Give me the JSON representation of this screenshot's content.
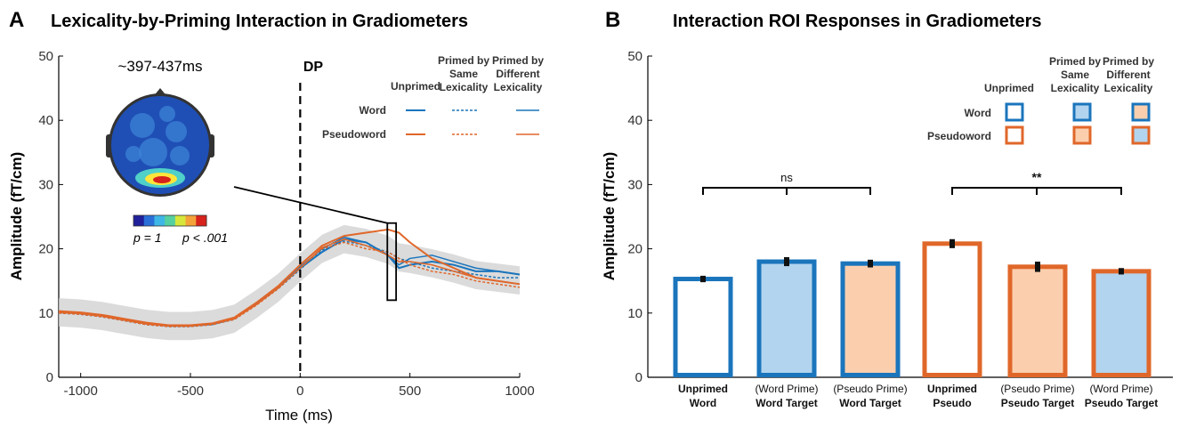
{
  "panels": {
    "a": {
      "letter": "A",
      "title": "Lexicality-by-Priming Interaction in Gradiometers"
    },
    "b": {
      "letter": "B",
      "title": "Interaction ROI Responses in Gradiometers"
    }
  },
  "colors": {
    "word": "#1a75bc",
    "pseudo": "#e0672a",
    "word_fill": "#b3d4ee",
    "pseudo_fill": "#fbcfae",
    "band": "#cfcfcf"
  },
  "chart_data": [
    {
      "type": "line",
      "xlabel": "Time (ms)",
      "ylabel": "Amplitude (fT/cm)",
      "xlim": [
        -1100,
        1000
      ],
      "ylim": [
        0,
        50
      ],
      "xticks": [
        -1000,
        -500,
        0,
        500,
        1000
      ],
      "yticks": [
        0,
        10,
        20,
        30,
        40,
        50
      ],
      "x": [
        -1100,
        -1000,
        -900,
        -800,
        -700,
        -600,
        -500,
        -400,
        -300,
        -200,
        -100,
        0,
        100,
        200,
        300,
        400,
        450,
        500,
        600,
        700,
        800,
        900,
        1000
      ],
      "series": [
        {
          "lexicality": "Word",
          "priming": "Unprimed",
          "values": [
            10.2,
            10.0,
            9.6,
            9.0,
            8.4,
            8.0,
            8.0,
            8.3,
            9.2,
            11.5,
            14.0,
            17.0,
            19.5,
            21.5,
            21.0,
            19.0,
            17.0,
            17.5,
            18.0,
            17.5,
            16.5,
            16.5,
            16.0
          ]
        },
        {
          "lexicality": "Word",
          "priming": "Primed by Same Lexicality",
          "values": [
            10.0,
            9.8,
            9.4,
            8.8,
            8.2,
            7.9,
            7.9,
            8.2,
            9.0,
            11.3,
            13.8,
            16.8,
            19.8,
            21.2,
            20.5,
            19.5,
            18.5,
            18.0,
            17.0,
            16.5,
            16.0,
            15.5,
            15.5
          ]
        },
        {
          "lexicality": "Word",
          "priming": "Primed by Different Lexicality",
          "values": [
            10.1,
            9.9,
            9.5,
            8.9,
            8.3,
            8.0,
            8.0,
            8.2,
            9.1,
            11.4,
            13.9,
            17.2,
            20.0,
            21.8,
            21.0,
            19.0,
            17.5,
            18.5,
            19.0,
            18.0,
            17.0,
            16.5,
            16.0
          ]
        },
        {
          "lexicality": "Pseudoword",
          "priming": "Unprimed",
          "values": [
            10.3,
            10.1,
            9.7,
            9.1,
            8.5,
            8.1,
            8.1,
            8.4,
            9.3,
            11.6,
            14.2,
            17.5,
            20.5,
            22.0,
            22.5,
            23.0,
            22.5,
            21.0,
            18.5,
            17.0,
            15.5,
            15.0,
            14.5
          ]
        },
        {
          "lexicality": "Pseudoword",
          "priming": "Primed by Same Lexicality",
          "values": [
            10.0,
            9.8,
            9.4,
            8.8,
            8.2,
            7.9,
            7.9,
            8.2,
            9.0,
            11.2,
            13.8,
            17.0,
            20.0,
            21.0,
            20.0,
            19.5,
            18.5,
            17.5,
            16.5,
            16.0,
            15.0,
            14.5,
            14.0
          ]
        },
        {
          "lexicality": "Pseudoword",
          "priming": "Primed by Different Lexicality",
          "values": [
            10.1,
            9.9,
            9.5,
            8.9,
            8.3,
            8.0,
            8.0,
            8.3,
            9.1,
            11.3,
            13.9,
            17.0,
            20.2,
            21.5,
            20.5,
            19.0,
            18.0,
            18.0,
            17.5,
            16.5,
            15.5,
            15.0,
            14.5
          ]
        }
      ],
      "annotations": {
        "dp_label": "DP",
        "dp_x": 0,
        "window_label": "~397-437ms",
        "window": [
          397,
          437
        ],
        "colorbar_left": "p = 1",
        "colorbar_right": "p < .001"
      },
      "legend": {
        "placement": "top-right",
        "columns": [
          "Unprimed",
          "Primed by Same Lexicality",
          "Primed by Different Lexicality"
        ],
        "rows": [
          "Word",
          "Pseudoword"
        ]
      }
    },
    {
      "type": "bar",
      "ylabel": "Amplitude (fT/cm)",
      "ylim": [
        0,
        50
      ],
      "yticks": [
        0,
        10,
        20,
        30,
        40,
        50
      ],
      "bars": [
        {
          "line1": "Unprimed",
          "line2": "Word",
          "line1_bold": true,
          "value": 15.3,
          "err": 0.5,
          "edge": "word",
          "fill": "none"
        },
        {
          "line1": "(Word Prime)",
          "line2": "Word Target",
          "line1_bold": false,
          "value": 18.0,
          "err": 0.7,
          "edge": "word",
          "fill": "word"
        },
        {
          "line1": "(Pseudo Prime)",
          "line2": "Word Target",
          "line1_bold": false,
          "value": 17.7,
          "err": 0.6,
          "edge": "word",
          "fill": "pseudo"
        },
        {
          "line1": "Unprimed",
          "line2": "Pseudo",
          "line1_bold": true,
          "value": 20.8,
          "err": 0.7,
          "edge": "pseudo",
          "fill": "none"
        },
        {
          "line1": "(Pseudo Prime)",
          "line2": "Pseudo Target",
          "line1_bold": false,
          "value": 17.2,
          "err": 0.8,
          "edge": "pseudo",
          "fill": "pseudo"
        },
        {
          "line1": "(Word Prime)",
          "line2": "Pseudo Target",
          "line1_bold": false,
          "value": 16.5,
          "err": 0.5,
          "edge": "pseudo",
          "fill": "word"
        }
      ],
      "significance": [
        {
          "from": 0,
          "to": 2,
          "y": 29.5,
          "label": "ns"
        },
        {
          "from": 3,
          "to": 5,
          "y": 29.5,
          "label": "**"
        }
      ],
      "legend": {
        "placement": "top-right",
        "columns": [
          "Unprimed",
          "Primed by Same Lexicality",
          "Primed by Different Lexicality"
        ],
        "rows": [
          "Word",
          "Pseudoword"
        ]
      }
    }
  ]
}
